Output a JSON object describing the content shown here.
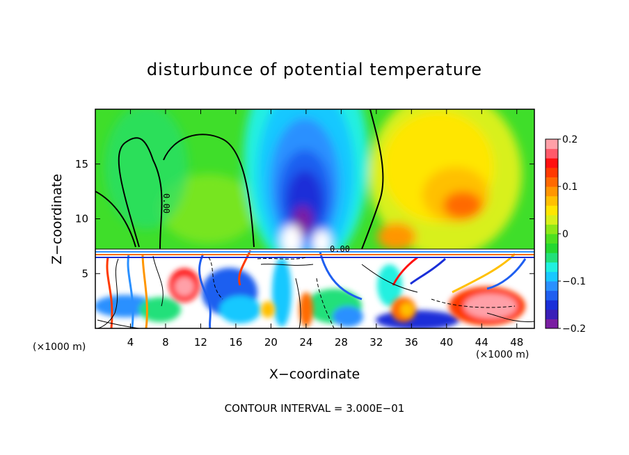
{
  "chart_data": {
    "type": "heatmap",
    "title": "disturbunce of potential temperature",
    "xlabel": "X−coordinate",
    "ylabel": "Z−coordinate",
    "x_unit_left": "(×1000 m)",
    "x_unit_right": "(×1000 m)",
    "xlim": [
      0,
      50
    ],
    "ylim": [
      0,
      20
    ],
    "x_ticks": [
      4,
      8,
      12,
      16,
      20,
      24,
      28,
      32,
      36,
      40,
      44,
      48
    ],
    "y_ticks": [
      5,
      10,
      15
    ],
    "contour_label": "0.00",
    "footnote": "CONTOUR INTERVAL = 3.000E−01",
    "colorbar": {
      "range": [
        -0.2,
        0.2
      ],
      "tick_values": [
        0.2,
        0.1,
        0,
        -0.1,
        -0.2
      ],
      "tick_labels": [
        "0.2",
        "0.1",
        "0",
        "−0.1",
        "−0.2"
      ],
      "colors": [
        "#7a1fa2",
        "#3a1fb8",
        "#1a2fd8",
        "#1f5ff0",
        "#2a90ff",
        "#19c8ff",
        "#20f0e0",
        "#22e07a",
        "#24d830",
        "#4ee020",
        "#8ee818",
        "#d8f01a",
        "#ffe600",
        "#ffc000",
        "#ff9600",
        "#ff6a00",
        "#ff3a00",
        "#ff1010",
        "#ff5a6a",
        "#ffa0a8"
      ]
    },
    "features": [
      {
        "label": "negative anomaly (cool)",
        "x": 25,
        "z": 14,
        "value": -0.18
      },
      {
        "label": "positive anomaly (warm)",
        "x": 42,
        "z": 11,
        "value": 0.14
      },
      {
        "label": "positive anomaly (warm)",
        "x": 35,
        "z": 8,
        "value": 0.1
      }
    ]
  }
}
